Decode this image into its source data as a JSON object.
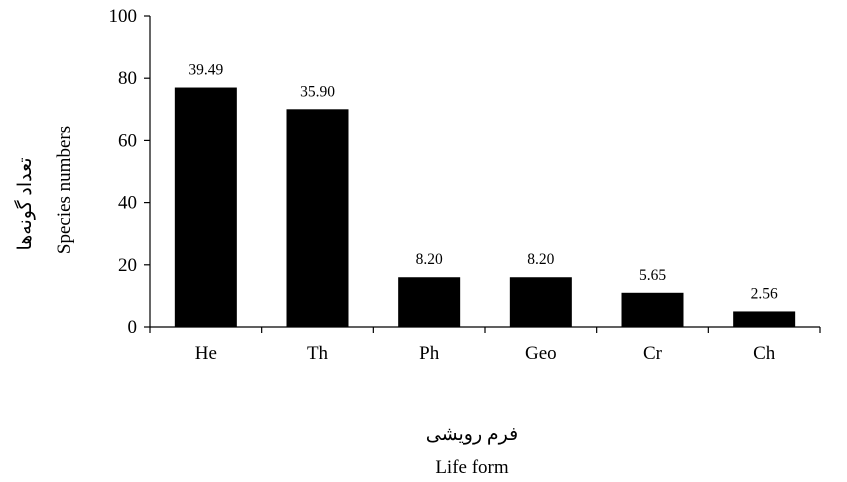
{
  "chart_data": {
    "type": "bar",
    "categories": [
      "He",
      "Th",
      "Ph",
      "Geo",
      "Cr",
      "Ch"
    ],
    "values": [
      77,
      70,
      16,
      16,
      11,
      5
    ],
    "data_labels": [
      "39.49",
      "35.90",
      "8.20",
      "8.20",
      "5.65",
      "2.56"
    ],
    "ylim": [
      0,
      100
    ],
    "yticks": [
      0,
      20,
      40,
      60,
      80,
      100
    ],
    "ylabel_fa": "تعداد گونه‌ها",
    "ylabel": "Species numbers",
    "xlabel_fa": "فرم رویشی",
    "xlabel": "Life form",
    "bar_color": "#000000",
    "grid": false,
    "legend": "none"
  }
}
